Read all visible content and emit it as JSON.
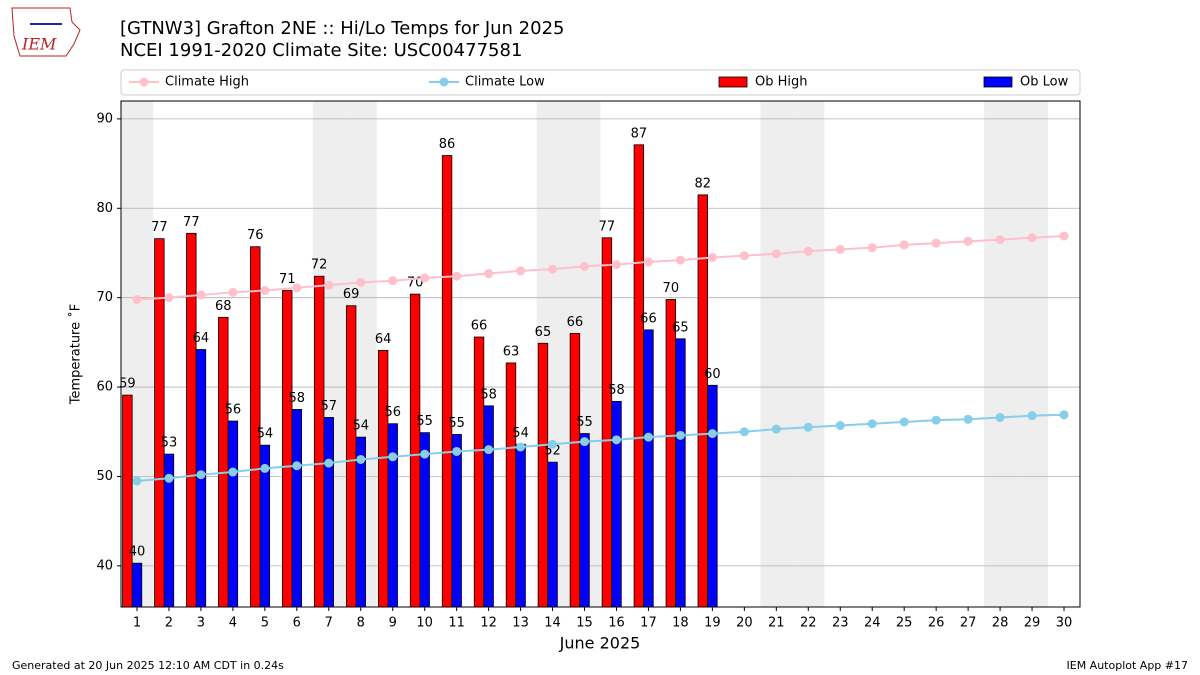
{
  "chart_data": {
    "type": "bar",
    "title": "[GTNW3] Grafton 2NE :: Hi/Lo Temps for Jun 2025",
    "subtitle": "NCEI 1991-2020 Climate Site: USC00477581",
    "xlabel": "June 2025",
    "ylabel": "Temperature ˚F",
    "x": [
      1,
      2,
      3,
      4,
      5,
      6,
      7,
      8,
      9,
      10,
      11,
      12,
      13,
      14,
      15,
      16,
      17,
      18,
      19,
      20,
      21,
      22,
      23,
      24,
      25,
      26,
      27,
      28,
      29,
      30
    ],
    "xlim": [
      0.5,
      30.5
    ],
    "xticks": [
      1,
      2,
      3,
      4,
      5,
      6,
      7,
      8,
      9,
      10,
      11,
      12,
      13,
      14,
      15,
      16,
      17,
      18,
      19,
      20,
      21,
      22,
      23,
      24,
      25,
      26,
      27,
      28,
      29,
      30
    ],
    "ylim": [
      35.4,
      92.0
    ],
    "yticks": [
      40,
      50,
      60,
      70,
      80,
      90
    ],
    "grid": true,
    "weekend_shading": [
      1,
      7,
      8,
      14,
      15,
      21,
      22,
      28,
      29
    ],
    "series": [
      {
        "name": "Climate High",
        "type": "line",
        "color": "#ffc0cb",
        "values": [
          69.8,
          70.0,
          70.3,
          70.6,
          70.8,
          71.1,
          71.4,
          71.7,
          71.9,
          72.2,
          72.4,
          72.7,
          73.0,
          73.2,
          73.5,
          73.7,
          74.0,
          74.2,
          74.5,
          74.7,
          74.9,
          75.2,
          75.4,
          75.6,
          75.9,
          76.1,
          76.3,
          76.5,
          76.7,
          76.9
        ]
      },
      {
        "name": "Climate Low",
        "type": "line",
        "color": "#87ceeb",
        "values": [
          49.5,
          49.8,
          50.2,
          50.5,
          50.9,
          51.2,
          51.5,
          51.9,
          52.2,
          52.5,
          52.8,
          53.0,
          53.3,
          53.6,
          53.9,
          54.1,
          54.4,
          54.6,
          54.8,
          55.0,
          55.3,
          55.5,
          55.7,
          55.9,
          56.1,
          56.3,
          56.4,
          56.6,
          56.8,
          56.9
        ]
      },
      {
        "name": "Ob High",
        "type": "bar",
        "color": "#ff0000",
        "values": [
          59.1,
          76.6,
          77.2,
          67.8,
          75.7,
          70.8,
          72.4,
          69.1,
          64.1,
          70.4,
          85.9,
          65.6,
          62.7,
          64.9,
          66.0,
          76.7,
          87.1,
          69.8,
          81.5,
          null,
          null,
          null,
          null,
          null,
          null,
          null,
          null,
          null,
          null,
          null
        ],
        "value_labels": [
          "59",
          "77",
          "77",
          "68",
          "76",
          "71",
          "72",
          "69",
          "64",
          "70",
          "86",
          "66",
          "63",
          "65",
          "66",
          "77",
          "87",
          "70",
          "82",
          null,
          null,
          null,
          null,
          null,
          null,
          null,
          null,
          null,
          null,
          null
        ]
      },
      {
        "name": "Ob Low",
        "type": "bar",
        "color": "#0000ff",
        "values": [
          40.3,
          52.5,
          64.2,
          56.2,
          53.5,
          57.5,
          56.6,
          54.4,
          55.9,
          54.9,
          54.7,
          57.9,
          53.6,
          51.6,
          54.8,
          58.4,
          66.4,
          65.4,
          60.2,
          null,
          null,
          null,
          null,
          null,
          null,
          null,
          null,
          null,
          null,
          null
        ],
        "value_labels": [
          "40",
          "53",
          "64",
          "56",
          "54",
          "58",
          "57",
          "54",
          "56",
          "55",
          "55",
          "58",
          "54",
          "52",
          "55",
          "58",
          "66",
          "65",
          "60",
          null,
          null,
          null,
          null,
          null,
          null,
          null,
          null,
          null,
          null,
          null
        ]
      }
    ]
  },
  "logo": "IEM",
  "footer": {
    "left": "Generated at 20 Jun 2025 12:10 AM CDT in 0.24s",
    "right": "IEM Autoplot App #17"
  }
}
